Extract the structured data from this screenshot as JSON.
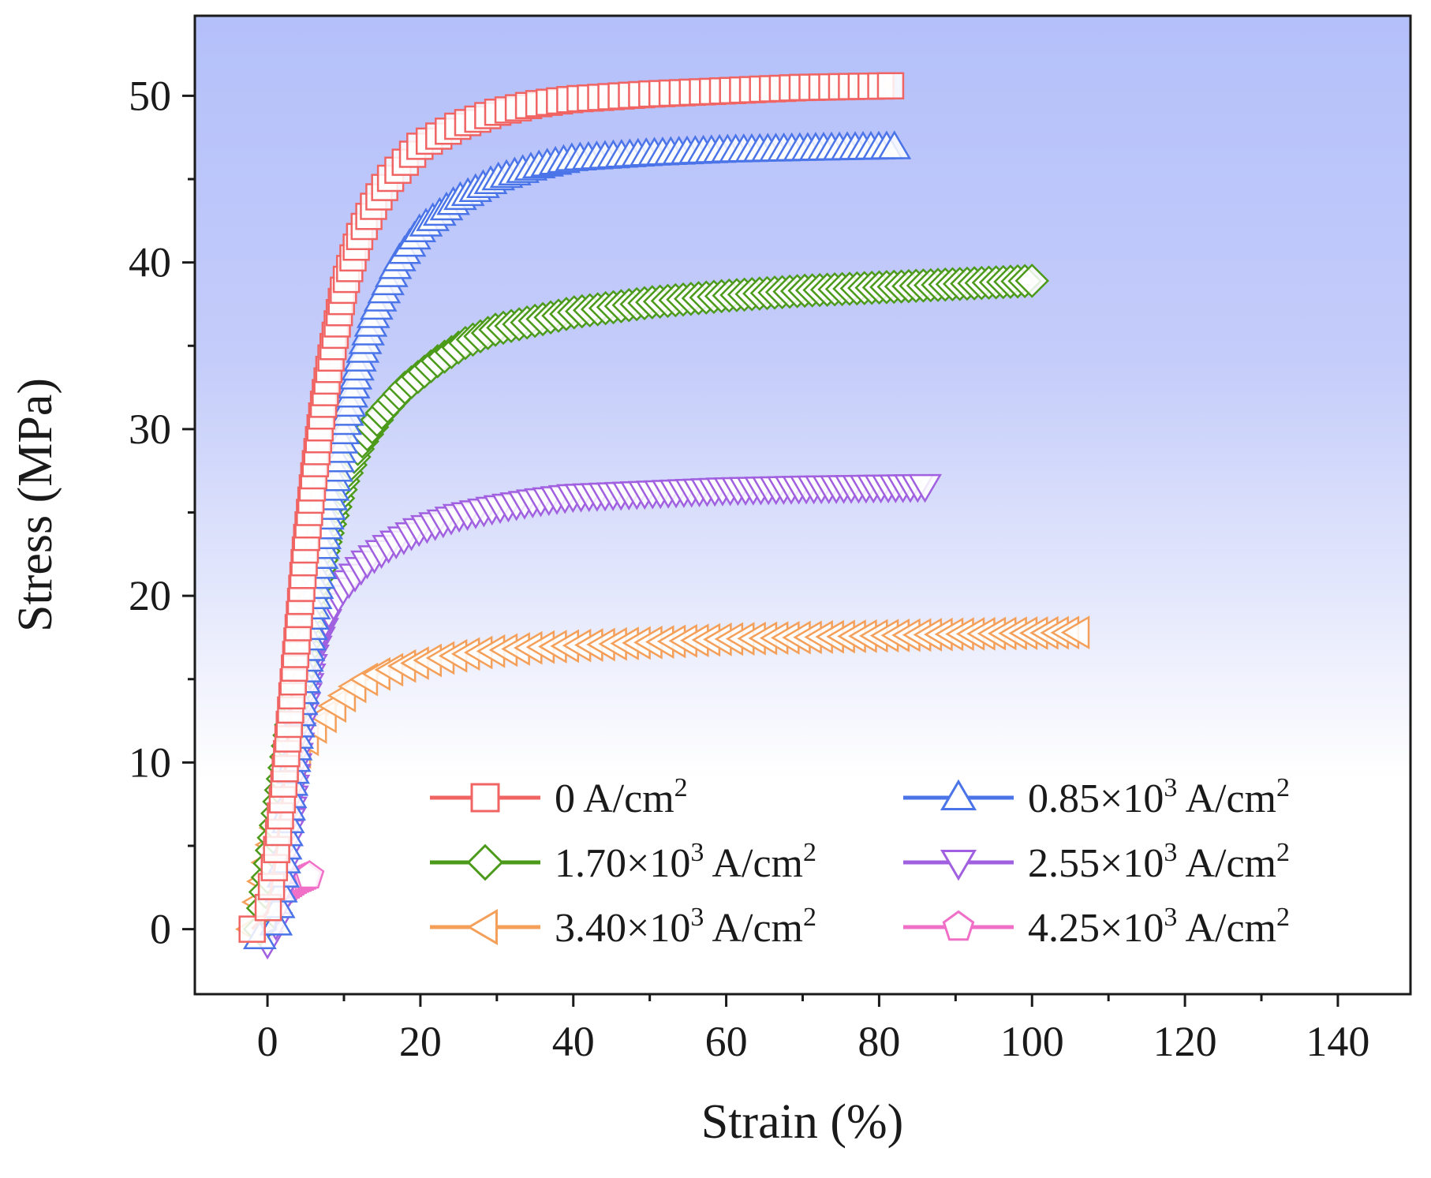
{
  "chart_data": {
    "type": "line",
    "xlabel": "Strain (%)",
    "ylabel": "Stress (MPa)",
    "xlim": [
      -9.5,
      149.5
    ],
    "ylim": [
      -3.9,
      54.8
    ],
    "xticks": [
      0,
      20,
      40,
      60,
      80,
      100,
      120,
      140
    ],
    "yticks": [
      0,
      10,
      20,
      30,
      40,
      50
    ],
    "grid": false,
    "background": "vertical gradient: blue (#b4c0fa) at top to white near stress 14 MPa",
    "legend_position": "bottom-right, two columns",
    "series": [
      {
        "name": "0 A/cm2",
        "legend": {
          "pre": "0 A/cm",
          "sup": "2",
          "post": ""
        },
        "color": "#f06464",
        "marker": "square",
        "points": [
          [
            -2,
            0
          ],
          [
            0,
            1
          ],
          [
            1,
            4
          ],
          [
            2,
            8
          ],
          [
            3,
            13
          ],
          [
            4,
            18
          ],
          [
            5,
            23
          ],
          [
            6,
            27
          ],
          [
            7,
            30.5
          ],
          [
            8,
            33.5
          ],
          [
            9,
            36
          ],
          [
            10,
            38.5
          ],
          [
            12,
            41.5
          ],
          [
            14,
            43.5
          ],
          [
            16,
            45
          ],
          [
            18,
            46
          ],
          [
            20,
            47
          ],
          [
            25,
            48.2
          ],
          [
            30,
            49
          ],
          [
            35,
            49.5
          ],
          [
            40,
            49.8
          ],
          [
            50,
            50.1
          ],
          [
            60,
            50.3
          ],
          [
            70,
            50.5
          ],
          [
            81.5,
            50.6
          ]
        ]
      },
      {
        "name": "0.85×10^3 A/cm2",
        "legend": {
          "pre": "0.85×10",
          "sup": "3",
          "post": " A/cm",
          "sup2": "2"
        },
        "color": "#4a74e8",
        "marker": "triangle-up",
        "points": [
          [
            -1,
            -0.5
          ],
          [
            1,
            0
          ],
          [
            2,
            3
          ],
          [
            3,
            8
          ],
          [
            4,
            12
          ],
          [
            5,
            15.5
          ],
          [
            6,
            19
          ],
          [
            8,
            25
          ],
          [
            10,
            30
          ],
          [
            12,
            34
          ],
          [
            14,
            37
          ],
          [
            17,
            40
          ],
          [
            20,
            42
          ],
          [
            25,
            43.8
          ],
          [
            30,
            45
          ],
          [
            35,
            45.7
          ],
          [
            40,
            46.2
          ],
          [
            50,
            46.5
          ],
          [
            60,
            46.7
          ],
          [
            70,
            46.8
          ],
          [
            82,
            46.9
          ]
        ]
      },
      {
        "name": "1.70×10^3 A/cm2",
        "legend": {
          "pre": "1.70×10",
          "sup": "3",
          "post": " A/cm",
          "sup2": "2"
        },
        "color": "#4c9a1a",
        "marker": "diamond",
        "points": [
          [
            -1,
            0
          ],
          [
            0,
            3
          ],
          [
            1,
            6
          ],
          [
            2,
            9
          ],
          [
            3,
            12
          ],
          [
            4,
            15
          ],
          [
            5,
            17.5
          ],
          [
            6,
            20
          ],
          [
            8,
            24
          ],
          [
            10,
            27
          ],
          [
            12,
            29
          ],
          [
            15,
            31
          ],
          [
            18,
            32.5
          ],
          [
            22,
            34
          ],
          [
            26,
            35.2
          ],
          [
            30,
            36
          ],
          [
            35,
            36.5
          ],
          [
            40,
            37
          ],
          [
            50,
            37.6
          ],
          [
            60,
            38
          ],
          [
            70,
            38.3
          ],
          [
            80,
            38.5
          ],
          [
            90,
            38.7
          ],
          [
            100,
            38.9
          ]
        ]
      },
      {
        "name": "2.55×10^3 A/cm2",
        "legend": {
          "pre": "2.55×10",
          "sup": "3",
          "post": " A/cm",
          "sup2": "2"
        },
        "color": "#a060e0",
        "marker": "triangle-down",
        "points": [
          [
            0,
            -0.8
          ],
          [
            1,
            0
          ],
          [
            2,
            3
          ],
          [
            3,
            7
          ],
          [
            4,
            11
          ],
          [
            5,
            14
          ],
          [
            6,
            16.5
          ],
          [
            8,
            19
          ],
          [
            10,
            20.5
          ],
          [
            13,
            22
          ],
          [
            16,
            23
          ],
          [
            20,
            24
          ],
          [
            25,
            24.8
          ],
          [
            30,
            25.3
          ],
          [
            35,
            25.7
          ],
          [
            40,
            26
          ],
          [
            50,
            26.2
          ],
          [
            60,
            26.4
          ],
          [
            70,
            26.5
          ],
          [
            86,
            26.6
          ]
        ]
      },
      {
        "name": "3.40×10^3 A/cm2",
        "legend": {
          "pre": "3.40×10",
          "sup": "3",
          "post": " A/cm",
          "sup2": "2"
        },
        "color": "#f4a05a",
        "marker": "triangle-left",
        "points": [
          [
            -2,
            0
          ],
          [
            -1,
            2
          ],
          [
            0,
            4
          ],
          [
            1,
            6
          ],
          [
            2,
            7.5
          ],
          [
            3,
            9
          ],
          [
            4,
            10.5
          ],
          [
            6,
            12
          ],
          [
            8,
            13
          ],
          [
            10,
            14
          ],
          [
            12,
            14.8
          ],
          [
            15,
            15.4
          ],
          [
            18,
            15.8
          ],
          [
            22,
            16.2
          ],
          [
            26,
            16.5
          ],
          [
            30,
            16.7
          ],
          [
            35,
            16.9
          ],
          [
            40,
            17
          ],
          [
            50,
            17.2
          ],
          [
            60,
            17.4
          ],
          [
            70,
            17.5
          ],
          [
            80,
            17.6
          ],
          [
            90,
            17.7
          ],
          [
            106,
            17.8
          ]
        ]
      },
      {
        "name": "4.25×10^3 A/cm2",
        "legend": {
          "pre": "4.25×10",
          "sup": "3",
          "post": " A/cm",
          "sup2": "2"
        },
        "color": "#f070c8",
        "marker": "pentagon",
        "points": [
          [
            -0.5,
            0
          ],
          [
            0,
            0.5
          ],
          [
            0.5,
            1
          ],
          [
            1,
            1.6
          ],
          [
            1.5,
            2
          ],
          [
            2,
            2.3
          ],
          [
            3,
            2.6
          ],
          [
            4,
            2.9
          ],
          [
            5.5,
            3.2
          ]
        ]
      }
    ]
  }
}
